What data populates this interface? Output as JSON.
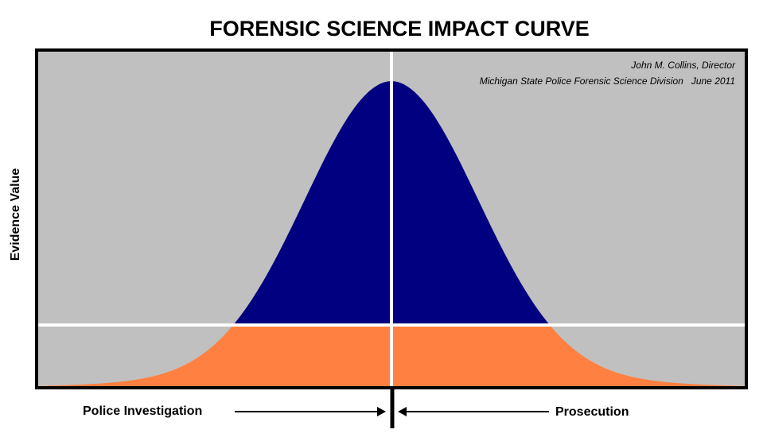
{
  "title": "FORENSIC SCIENCE IMPACT CURVE",
  "annotations": [
    "John M. Collins, Director",
    "Michigan State Police Forensic Science Division   June 2011"
  ],
  "y_axis_label": "Evidence Value",
  "x_labels": {
    "left": "Police Investigation",
    "right": "Prosecution"
  }
}
